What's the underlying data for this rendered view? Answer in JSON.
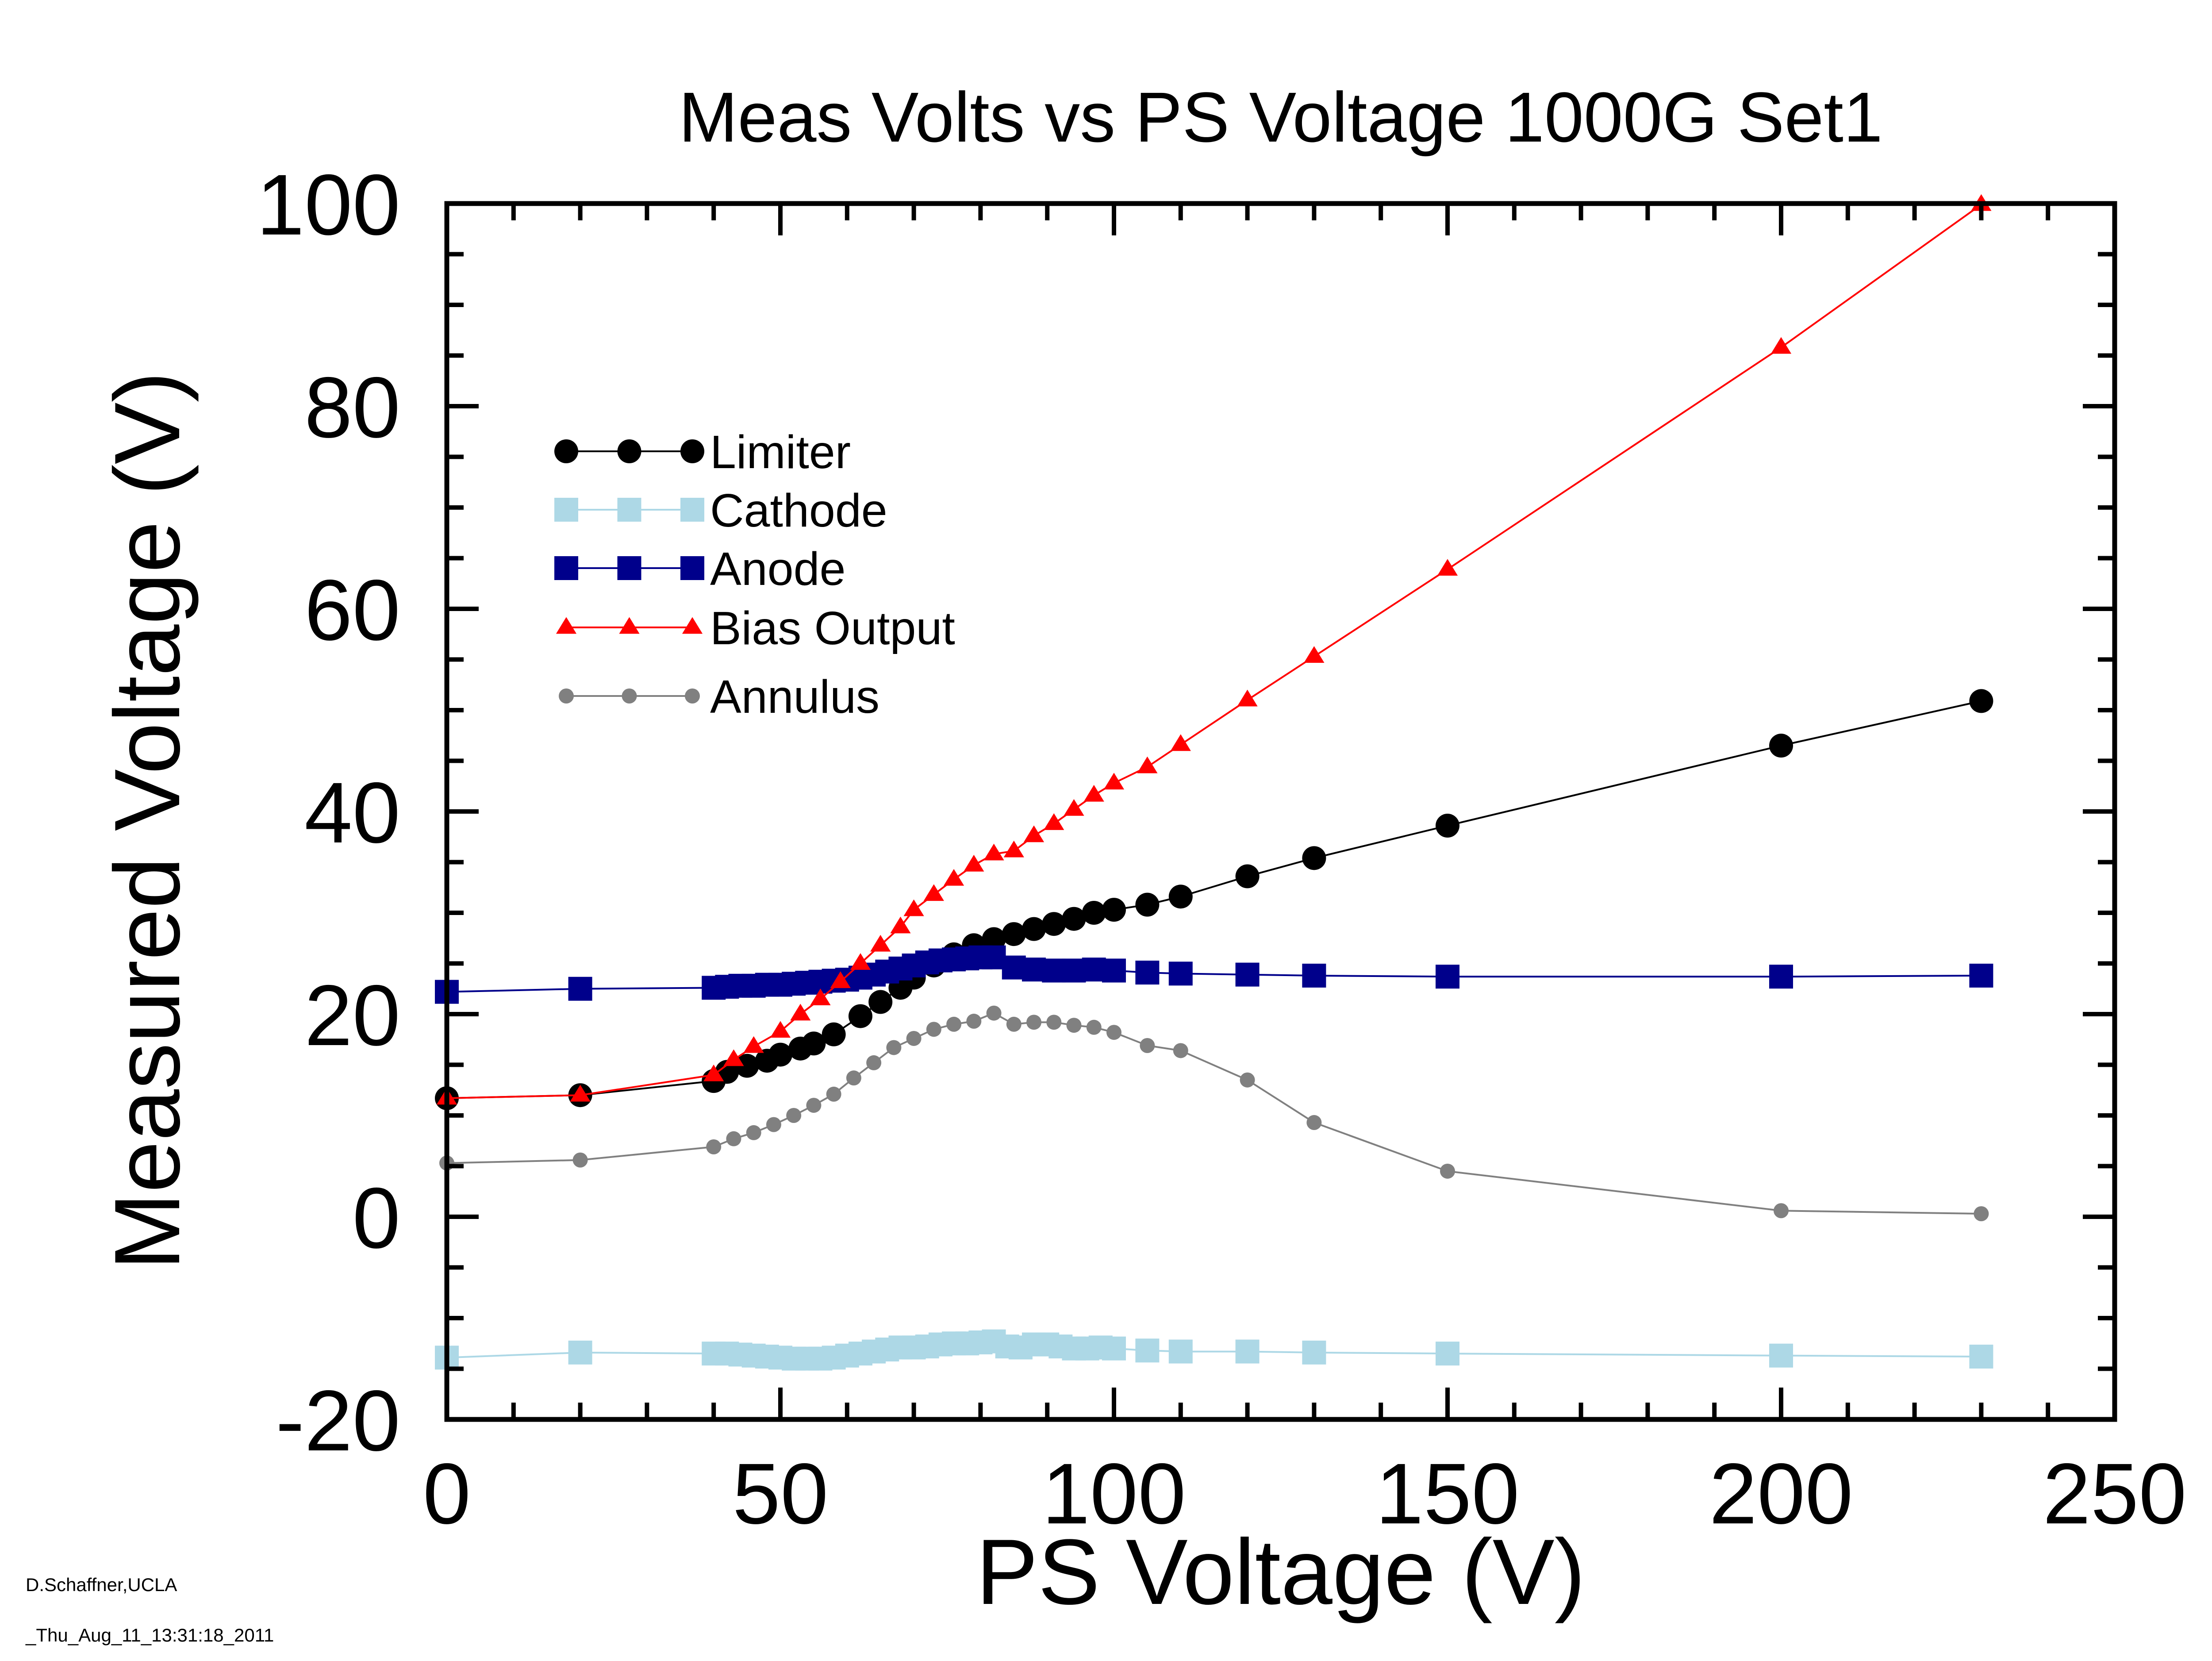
{
  "chart_data": {
    "type": "line",
    "title": "Meas Volts vs PS Voltage 1000G Set1",
    "xlabel": "PS Voltage (V)",
    "ylabel": "Measured Voltage (V)",
    "xlim": [
      0,
      250
    ],
    "ylim": [
      -20,
      100
    ],
    "xticks": [
      "0",
      "50",
      "100",
      "150",
      "200",
      "250"
    ],
    "yticks": [
      "-20",
      "0",
      "20",
      "40",
      "60",
      "80",
      "100"
    ],
    "grid": false,
    "legend_position": "upper-left",
    "series": [
      {
        "name": "Limiter",
        "color": "#000000",
        "marker": "circle",
        "marker_size": "large",
        "x": [
          0,
          20,
          40,
          42,
          45,
          48,
          50,
          53,
          55,
          58,
          62,
          65,
          68,
          70,
          73,
          76,
          79,
          82,
          85,
          88,
          91,
          94,
          97,
          100,
          105,
          110,
          120,
          130,
          150,
          200,
          230
        ],
        "y": [
          11.7,
          12.0,
          13.4,
          14.3,
          14.9,
          15.4,
          16.0,
          16.6,
          17.1,
          18.0,
          19.8,
          21.2,
          22.6,
          23.6,
          24.8,
          25.9,
          26.8,
          27.4,
          27.9,
          28.4,
          28.9,
          29.4,
          30.0,
          30.3,
          30.8,
          31.6,
          33.6,
          35.4,
          38.6,
          46.5,
          50.9
        ]
      },
      {
        "name": "Cathode",
        "color": "#add8e6",
        "marker": "square",
        "marker_size": "large",
        "x": [
          0,
          20,
          40,
          42,
          44,
          46,
          48,
          50,
          52,
          54,
          56,
          58,
          60,
          62,
          64,
          66,
          68,
          70,
          72,
          74,
          76,
          78,
          80,
          82,
          84,
          86,
          88,
          90,
          92,
          94,
          96,
          98,
          100,
          105,
          110,
          120,
          130,
          150,
          200,
          230
        ],
        "y": [
          -13.9,
          -13.4,
          -13.5,
          -13.5,
          -13.6,
          -13.7,
          -13.8,
          -13.9,
          -14.0,
          -14.0,
          -14.0,
          -13.9,
          -13.7,
          -13.5,
          -13.3,
          -13.1,
          -12.9,
          -12.9,
          -12.8,
          -12.6,
          -12.5,
          -12.5,
          -12.4,
          -12.3,
          -12.8,
          -12.9,
          -12.6,
          -12.6,
          -12.8,
          -13.0,
          -13.0,
          -12.9,
          -13.0,
          -13.2,
          -13.3,
          -13.3,
          -13.4,
          -13.5,
          -13.7,
          -13.8
        ]
      },
      {
        "name": "Anode",
        "color": "#00008b",
        "marker": "square",
        "marker_size": "large",
        "x": [
          0,
          20,
          40,
          42,
          44,
          46,
          48,
          50,
          52,
          54,
          56,
          58,
          60,
          62,
          64,
          66,
          68,
          70,
          72,
          74,
          76,
          78,
          80,
          82,
          85,
          88,
          91,
          94,
          97,
          100,
          105,
          110,
          120,
          130,
          150,
          200,
          230
        ],
        "y": [
          22.2,
          22.5,
          22.6,
          22.7,
          22.8,
          22.8,
          22.9,
          22.9,
          23.0,
          23.1,
          23.2,
          23.3,
          23.4,
          23.6,
          23.9,
          24.2,
          24.5,
          24.8,
          25.1,
          25.3,
          25.4,
          25.5,
          25.6,
          25.6,
          24.6,
          24.4,
          24.3,
          24.3,
          24.4,
          24.3,
          24.1,
          24.0,
          23.9,
          23.8,
          23.7,
          23.7,
          23.8
        ]
      },
      {
        "name": "Bias Output",
        "color": "#ff0000",
        "marker": "triangle",
        "marker_size": "small",
        "x": [
          0,
          20,
          40,
          43,
          46,
          50,
          53,
          56,
          59,
          62,
          65,
          68,
          70,
          73,
          76,
          79,
          82,
          85,
          88,
          91,
          94,
          97,
          100,
          105,
          110,
          120,
          130,
          150,
          200,
          230
        ],
        "y": [
          11.7,
          12.0,
          14.0,
          15.5,
          16.8,
          18.3,
          20.0,
          21.5,
          23.2,
          25.0,
          26.8,
          28.6,
          30.3,
          31.8,
          33.3,
          34.7,
          35.8,
          36.1,
          37.6,
          38.8,
          40.2,
          41.6,
          42.8,
          44.4,
          46.6,
          51.0,
          55.3,
          63.9,
          85.8,
          99.9
        ]
      },
      {
        "name": "Annulus",
        "color": "#808080",
        "marker": "circle",
        "marker_size": "small",
        "x": [
          0,
          20,
          40,
          43,
          46,
          49,
          52,
          55,
          58,
          61,
          64,
          67,
          70,
          73,
          76,
          79,
          82,
          85,
          88,
          91,
          94,
          97,
          100,
          105,
          110,
          120,
          130,
          150,
          200,
          230
        ],
        "y": [
          5.3,
          5.6,
          6.9,
          7.7,
          8.3,
          9.1,
          10.0,
          11.0,
          12.1,
          13.7,
          15.2,
          16.7,
          17.6,
          18.5,
          19.0,
          19.3,
          20.1,
          19.0,
          19.2,
          19.2,
          18.9,
          18.7,
          18.2,
          16.9,
          16.4,
          13.5,
          9.3,
          4.5,
          0.6,
          0.3
        ]
      }
    ]
  },
  "footer": {
    "author": "D.Schaffner,UCLA",
    "timestamp": "_Thu_Aug_11_13:31:18_2011"
  }
}
